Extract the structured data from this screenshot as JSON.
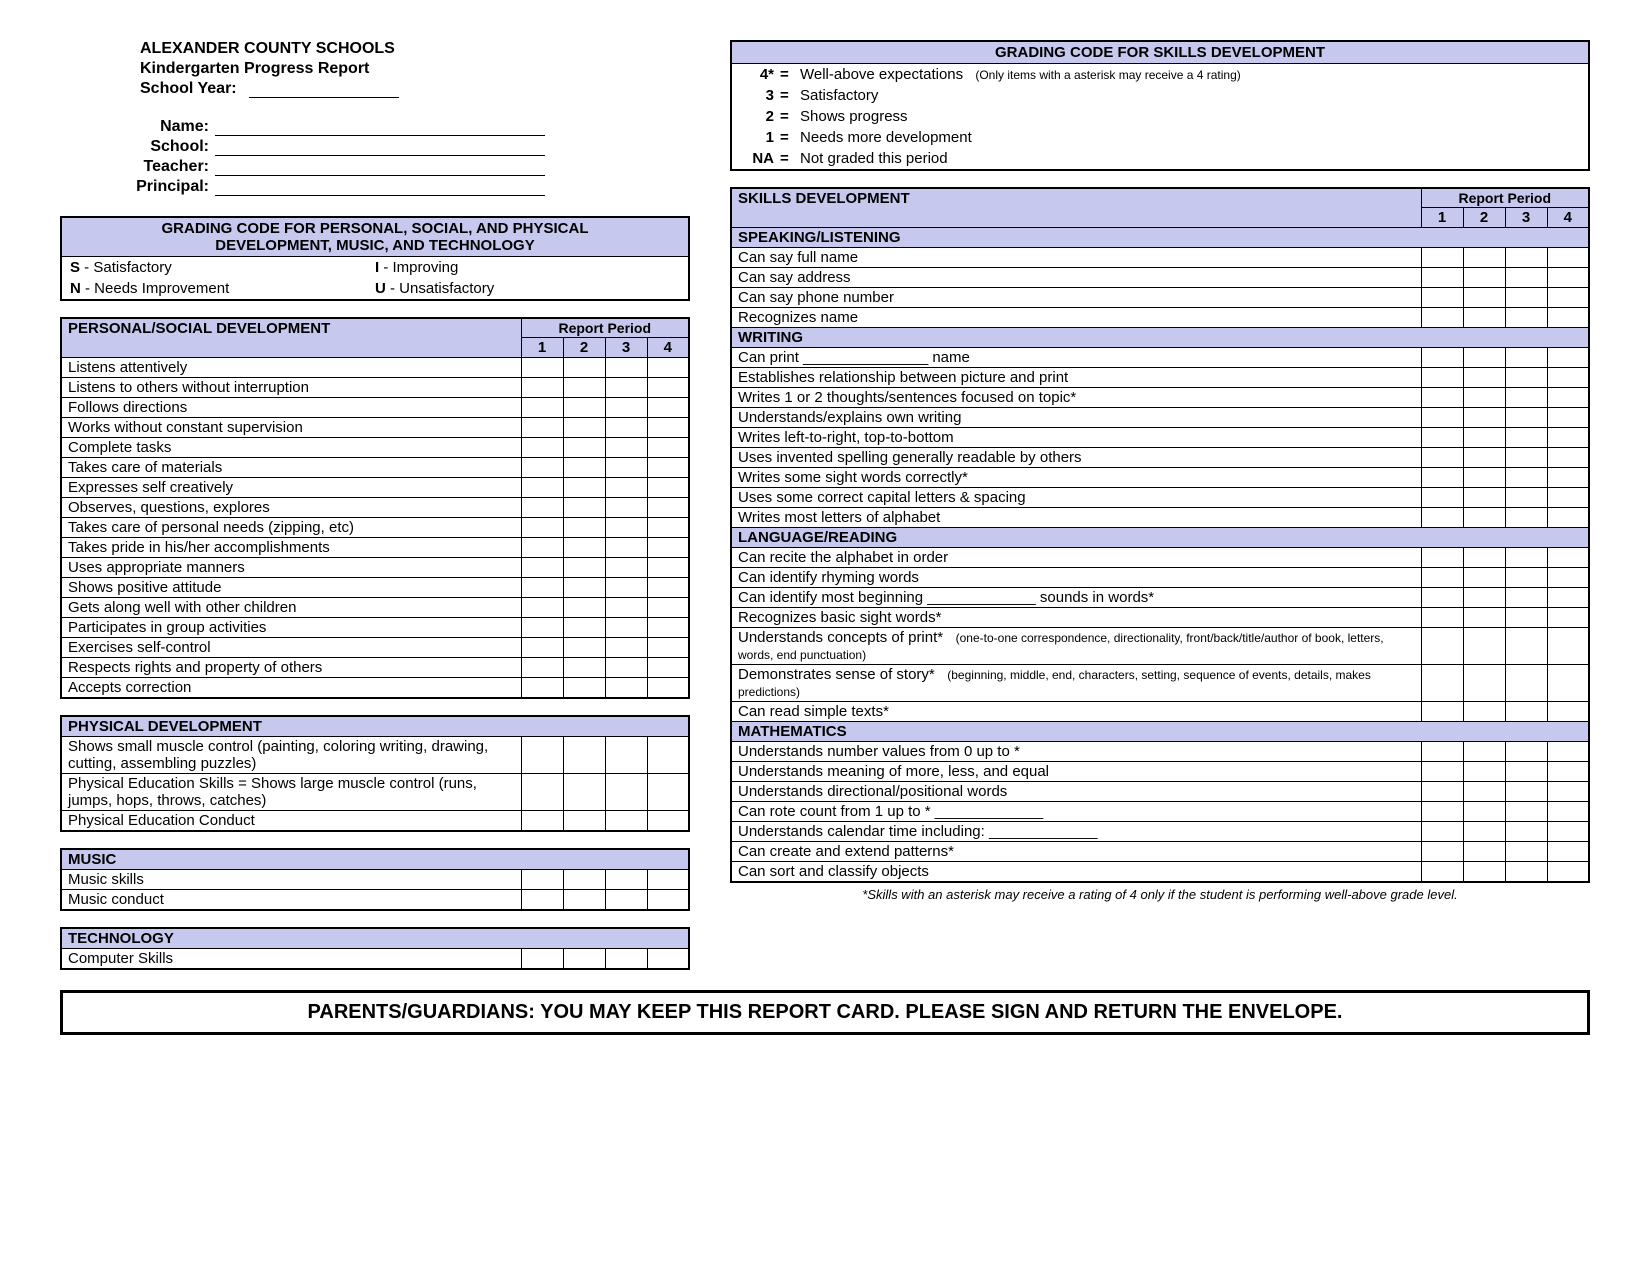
{
  "colors": {
    "header_bg": "#c6c9ed",
    "border": "#000000",
    "page_bg": "#ffffff",
    "text": "#000000"
  },
  "fonts": {
    "family": "Arial",
    "title_size_pt": 12,
    "body_size_pt": 11,
    "subnote_size_pt": 9
  },
  "header": {
    "school_name": "ALEXANDER COUNTY SCHOOLS",
    "report_title": "Kindergarten Progress Report",
    "school_year_label": "School Year:",
    "fields": {
      "name": "Name:",
      "school": "School:",
      "teacher": "Teacher:",
      "principal": "Principal:"
    }
  },
  "grading_skills": {
    "title": "GRADING CODE FOR SKILLS DEVELOPMENT",
    "rows": [
      {
        "code": "4*",
        "desc": "Well-above expectations",
        "note": "(Only items with a asterisk may receive a 4 rating)"
      },
      {
        "code": "3",
        "desc": "Satisfactory",
        "note": ""
      },
      {
        "code": "2",
        "desc": "Shows progress",
        "note": ""
      },
      {
        "code": "1",
        "desc": "Needs more development",
        "note": ""
      },
      {
        "code": "NA",
        "desc": "Not graded this period",
        "note": ""
      }
    ]
  },
  "grading_pspd": {
    "title1": "GRADING CODE FOR PERSONAL, SOCIAL, AND PHYSICAL",
    "title2": "DEVELOPMENT, MUSIC, AND TECHNOLOGY",
    "pairs": [
      {
        "l_code": "S",
        "l_desc": " - Satisfactory",
        "r_code": "I",
        "r_desc": " - Improving"
      },
      {
        "l_code": "N",
        "l_desc": " - Needs Improvement",
        "r_code": "U",
        "r_desc": " - Unsatisfactory"
      }
    ]
  },
  "report_period_label": "Report Period",
  "periods": [
    "1",
    "2",
    "3",
    "4"
  ],
  "left_sections": [
    {
      "title": "PERSONAL/SOCIAL DEVELOPMENT",
      "show_rp_header": true,
      "items": [
        "Listens attentively",
        "Listens to others without interruption",
        "Follows directions",
        "Works without constant supervision",
        "Complete tasks",
        "Takes care of materials",
        "Expresses self creatively",
        "Observes, questions, explores",
        "Takes care of personal needs (zipping, etc)",
        "Takes pride in his/her accomplishments",
        "Uses appropriate manners",
        "Shows positive attitude",
        "Gets along well with other children",
        "Participates in group activities",
        "Exercises self-control",
        "Respects rights and property of others",
        "Accepts correction"
      ]
    },
    {
      "title": "PHYSICAL DEVELOPMENT",
      "show_rp_header": false,
      "items": [
        "Shows small muscle control (painting, coloring writing, drawing, cutting, assembling puzzles)",
        "Physical Education Skills = Shows large muscle control (runs, jumps, hops, throws, catches)",
        "Physical Education Conduct"
      ]
    },
    {
      "title": "MUSIC",
      "show_rp_header": false,
      "items": [
        "Music skills",
        "Music conduct"
      ]
    },
    {
      "title": "TECHNOLOGY",
      "show_rp_header": false,
      "items": [
        "Computer Skills"
      ]
    }
  ],
  "right_main_title": "SKILLS DEVELOPMENT",
  "right_sections": [
    {
      "title": "SPEAKING/LISTENING",
      "items": [
        {
          "text": "Can say full name"
        },
        {
          "text": "Can say address"
        },
        {
          "text": "Can say phone number"
        },
        {
          "text": "Recognizes name"
        }
      ]
    },
    {
      "title": "WRITING",
      "items": [
        {
          "text": "Can print _______________ name"
        },
        {
          "text": "Establishes relationship between picture and print"
        },
        {
          "text": "Writes 1 or 2 thoughts/sentences focused on topic*"
        },
        {
          "text": "Understands/explains own writing"
        },
        {
          "text": "Writes left-to-right, top-to-bottom"
        },
        {
          "text": "Uses invented spelling generally readable by others"
        },
        {
          "text": "Writes some sight words correctly*"
        },
        {
          "text": "Uses some correct capital letters & spacing"
        },
        {
          "text": "Writes most letters of alphabet"
        }
      ]
    },
    {
      "title": "LANGUAGE/READING",
      "items": [
        {
          "text": "Can recite the alphabet in order"
        },
        {
          "text": "Can identify rhyming words"
        },
        {
          "text": "Can identify most beginning _____________ sounds in words*"
        },
        {
          "text": "Recognizes basic sight words*"
        },
        {
          "text": "Understands concepts of print*",
          "sub": "(one-to-one correspondence, directionality, front/back/title/author of book, letters, words, end punctuation)"
        },
        {
          "text": "Demonstrates sense of story*",
          "sub": "(beginning, middle, end, characters, setting, sequence of events, details, makes predictions)"
        },
        {
          "text": "Can read simple texts*"
        }
      ]
    },
    {
      "title": "MATHEMATICS",
      "items": [
        {
          "text": "Understands number values from 0 up to *"
        },
        {
          "text": "Understands meaning of more, less, and equal"
        },
        {
          "text": "Understands directional/positional words"
        },
        {
          "text": "Can rote count from 1 up to * _____________"
        },
        {
          "text": "Understands calendar time including: _____________"
        },
        {
          "text": "Can create and extend patterns*"
        },
        {
          "text": "Can sort and classify objects"
        }
      ]
    }
  ],
  "footnote": "*Skills with an asterisk may receive a rating of 4 only if the student is performing well-above grade level.",
  "footer": "PARENTS/GUARDIANS:  YOU MAY KEEP THIS REPORT CARD.  PLEASE SIGN AND RETURN THE ENVELOPE."
}
